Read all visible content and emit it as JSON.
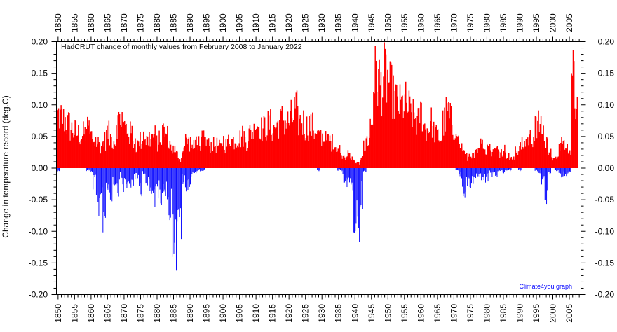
{
  "chart_data": {
    "type": "bar",
    "title": "HadCRUT change of monthly values from February 2008 to January 2022",
    "ylabel": "Change in temperature record (deg.C)",
    "xlabel": "",
    "credit": "Climate4you graph",
    "xlim": [
      1849.5,
      2008.5
    ],
    "ylim": [
      -0.2,
      0.2
    ],
    "x_ticks": [
      1850,
      1855,
      1860,
      1865,
      1870,
      1875,
      1880,
      1885,
      1890,
      1895,
      1900,
      1905,
      1910,
      1915,
      1920,
      1925,
      1930,
      1935,
      1940,
      1945,
      1950,
      1955,
      1960,
      1965,
      1970,
      1975,
      1980,
      1985,
      1990,
      1995,
      2000,
      2005
    ],
    "y_ticks": [
      "0.20",
      "0.15",
      "0.10",
      "0.05",
      "0.00",
      "-0.05",
      "-0.10",
      "-0.15",
      "-0.20"
    ],
    "y_tick_values": [
      0.2,
      0.15,
      0.1,
      0.05,
      0.0,
      -0.05,
      -0.1,
      -0.15,
      -0.2
    ],
    "grid": false,
    "colors": {
      "positive": "#ff0000",
      "negative": "#0000ff",
      "credit": "#0000ff"
    },
    "series": [
      {
        "name": "",
        "x": [
          1850,
          1851,
          1852,
          1853,
          1854,
          1855,
          1856,
          1857,
          1858,
          1859,
          1860,
          1861,
          1862,
          1863,
          1864,
          1865,
          1866,
          1867,
          1868,
          1869,
          1870,
          1871,
          1872,
          1873,
          1874,
          1875,
          1876,
          1877,
          1878,
          1879,
          1880,
          1881,
          1882,
          1883,
          1884,
          1885,
          1886,
          1887,
          1888,
          1889,
          1890,
          1891,
          1892,
          1893,
          1894,
          1895,
          1896,
          1897,
          1898,
          1899,
          1900,
          1901,
          1902,
          1903,
          1904,
          1905,
          1906,
          1907,
          1908,
          1909,
          1910,
          1911,
          1912,
          1913,
          1914,
          1915,
          1916,
          1917,
          1918,
          1919,
          1920,
          1921,
          1922,
          1923,
          1924,
          1925,
          1926,
          1927,
          1928,
          1929,
          1930,
          1931,
          1932,
          1933,
          1934,
          1935,
          1936,
          1937,
          1938,
          1939,
          1940,
          1941,
          1942,
          1943,
          1944,
          1945,
          1946,
          1947,
          1948,
          1949,
          1950,
          1951,
          1952,
          1953,
          1954,
          1955,
          1956,
          1957,
          1958,
          1959,
          1960,
          1961,
          1962,
          1963,
          1964,
          1965,
          1966,
          1967,
          1968,
          1969,
          1970,
          1971,
          1972,
          1973,
          1974,
          1975,
          1976,
          1977,
          1978,
          1979,
          1980,
          1981,
          1982,
          1983,
          1984,
          1985,
          1986,
          1987,
          1988,
          1989,
          1990,
          1991,
          1992,
          1993,
          1994,
          1995,
          1996,
          1997,
          1998,
          1999,
          2000,
          2001,
          2002,
          2003,
          2004,
          2005,
          2006,
          2007
        ],
        "hi": [
          0.115,
          0.11,
          0.105,
          0.095,
          0.085,
          0.08,
          0.075,
          0.07,
          0.075,
          0.09,
          0.07,
          0.06,
          0.055,
          0.05,
          0.06,
          0.075,
          0.065,
          0.06,
          0.1,
          0.11,
          0.09,
          0.085,
          0.075,
          0.06,
          0.05,
          0.06,
          0.075,
          0.06,
          0.065,
          0.07,
          0.055,
          0.06,
          0.08,
          0.07,
          0.05,
          0.04,
          0.03,
          0.02,
          0.045,
          0.06,
          0.055,
          0.045,
          0.06,
          0.055,
          0.06,
          0.055,
          0.05,
          0.05,
          0.05,
          0.045,
          0.06,
          0.05,
          0.065,
          0.06,
          0.065,
          0.065,
          0.07,
          0.06,
          0.075,
          0.08,
          0.1,
          0.095,
          0.085,
          0.09,
          0.095,
          0.085,
          0.09,
          0.1,
          0.105,
          0.1,
          0.1,
          0.11,
          0.125,
          0.1,
          0.1,
          0.09,
          0.095,
          0.09,
          0.08,
          0.07,
          0.07,
          0.06,
          0.06,
          0.055,
          0.05,
          0.04,
          0.03,
          0.025,
          0.03,
          0.02,
          0.015,
          0.01,
          0.02,
          0.05,
          0.06,
          0.1,
          0.2,
          0.19,
          0.18,
          0.2,
          0.19,
          0.17,
          0.15,
          0.14,
          0.135,
          0.14,
          0.13,
          0.12,
          0.11,
          0.1,
          0.12,
          0.09,
          0.085,
          0.1,
          0.08,
          0.07,
          0.065,
          0.1,
          0.12,
          0.105,
          0.09,
          0.06,
          0.04,
          0.03,
          0.025,
          0.03,
          0.035,
          0.04,
          0.05,
          0.06,
          0.045,
          0.04,
          0.035,
          0.04,
          0.035,
          0.04,
          0.03,
          0.025,
          0.02,
          0.035,
          0.05,
          0.05,
          0.06,
          0.065,
          0.07,
          0.085,
          0.1,
          0.07,
          0.06,
          0.045,
          0.02,
          0.03,
          0.04,
          0.05,
          0.04,
          0.03,
          0.19,
          0.14
        ],
        "lo": [
          -0.005,
          0.0,
          0.0,
          0.0,
          0.0,
          0.0,
          0.0,
          0.0,
          0.0,
          -0.005,
          -0.01,
          -0.035,
          -0.085,
          -0.06,
          -0.105,
          -0.04,
          -0.055,
          -0.03,
          -0.045,
          -0.02,
          -0.04,
          -0.04,
          -0.035,
          -0.03,
          -0.02,
          -0.045,
          -0.01,
          -0.035,
          -0.055,
          -0.065,
          -0.05,
          -0.06,
          -0.04,
          -0.06,
          -0.085,
          -0.15,
          -0.185,
          -0.12,
          -0.03,
          -0.05,
          -0.03,
          -0.01,
          -0.01,
          -0.005,
          -0.005,
          0.0,
          0.0,
          0.0,
          0.0,
          0.0,
          0.0,
          0.0,
          0.0,
          0.0,
          0.0,
          0.0,
          0.0,
          0.0,
          0.0,
          0.0,
          0.0,
          0.0,
          0.0,
          0.0,
          0.0,
          0.0,
          0.0,
          0.0,
          0.0,
          0.0,
          0.0,
          0.0,
          0.0,
          0.0,
          0.0,
          0.0,
          0.0,
          0.0,
          0.0,
          -0.005,
          0.0,
          0.0,
          0.0,
          0.0,
          0.0,
          -0.005,
          -0.01,
          -0.025,
          -0.035,
          -0.05,
          -0.115,
          -0.13,
          -0.065,
          -0.01,
          0.0,
          0.0,
          0.0,
          0.0,
          0.0,
          0.0,
          0.0,
          0.0,
          0.0,
          0.0,
          0.0,
          0.0,
          0.0,
          0.0,
          0.0,
          0.0,
          0.0,
          0.0,
          0.0,
          0.0,
          0.0,
          0.0,
          0.0,
          0.0,
          0.0,
          0.0,
          0.0,
          -0.005,
          -0.02,
          -0.05,
          -0.045,
          -0.035,
          -0.03,
          -0.02,
          -0.02,
          -0.02,
          -0.025,
          -0.01,
          -0.015,
          -0.015,
          -0.01,
          -0.01,
          -0.005,
          -0.005,
          0.0,
          0.0,
          -0.005,
          0.0,
          0.0,
          0.0,
          0.0,
          -0.005,
          -0.01,
          -0.03,
          -0.06,
          -0.015,
          0.0,
          -0.005,
          -0.01,
          -0.015,
          -0.025,
          -0.01,
          0.0,
          0.0
        ]
      }
    ]
  }
}
